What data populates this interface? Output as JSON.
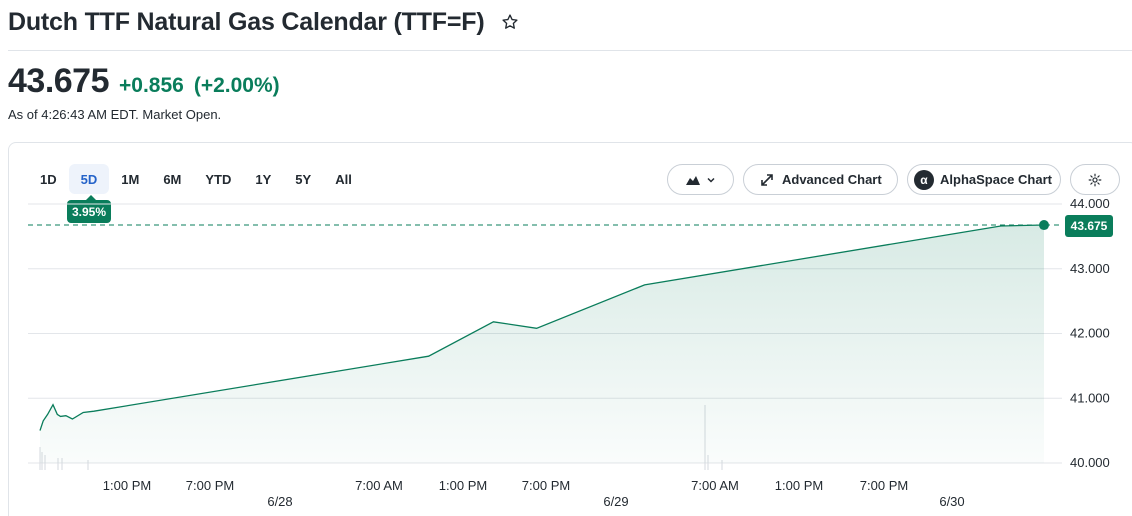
{
  "header": {
    "title": "Dutch TTF Natural Gas Calendar (TTF=F)",
    "watchlist_icon": "star-outline-icon"
  },
  "quote": {
    "price": "43.675",
    "change": "+0.856",
    "change_pct": "(+2.00%)",
    "as_of": "As of 4:26:43 AM EDT. Market Open.",
    "positive_color": "#0a7d5b"
  },
  "chart_controls": {
    "ranges": [
      "1D",
      "5D",
      "1M",
      "6M",
      "YTD",
      "1Y",
      "5Y",
      "All"
    ],
    "active_range": "5D",
    "active_range_change": "3.95%",
    "chart_type_icon": "mountain-chart-icon",
    "advanced_chart_label": "Advanced Chart",
    "alphaspace_chart_label": "AlphaSpace Chart",
    "settings_icon": "gear-icon"
  },
  "chart_data": {
    "type": "area",
    "y_ticks": [
      "44.000",
      "43.000",
      "42.000",
      "41.000",
      "40.000"
    ],
    "ylim": [
      40,
      44
    ],
    "last_value_label": "43.675",
    "x_tick_labels": [
      "1:00 PM",
      "7:00 PM",
      "7:00 AM",
      "1:00 PM",
      "7:00 PM",
      "7:00 AM",
      "1:00 PM",
      "7:00 PM"
    ],
    "date_labels": [
      "6/28",
      "6/29",
      "6/30"
    ],
    "series": [
      {
        "x": [
          0,
          0.03,
          0.07,
          0.12,
          0.16,
          0.19,
          0.24,
          0.3,
          0.4,
          0.5,
          3.6,
          4.2,
          4.6,
          5.6,
          8.9,
          9.3
        ],
        "values": [
          40.5,
          40.65,
          40.75,
          40.9,
          40.75,
          40.72,
          40.73,
          40.68,
          40.78,
          40.8,
          41.65,
          42.18,
          42.08,
          42.75,
          43.66,
          43.675
        ]
      }
    ],
    "series_color": "#0a7d5b",
    "grid": true
  }
}
